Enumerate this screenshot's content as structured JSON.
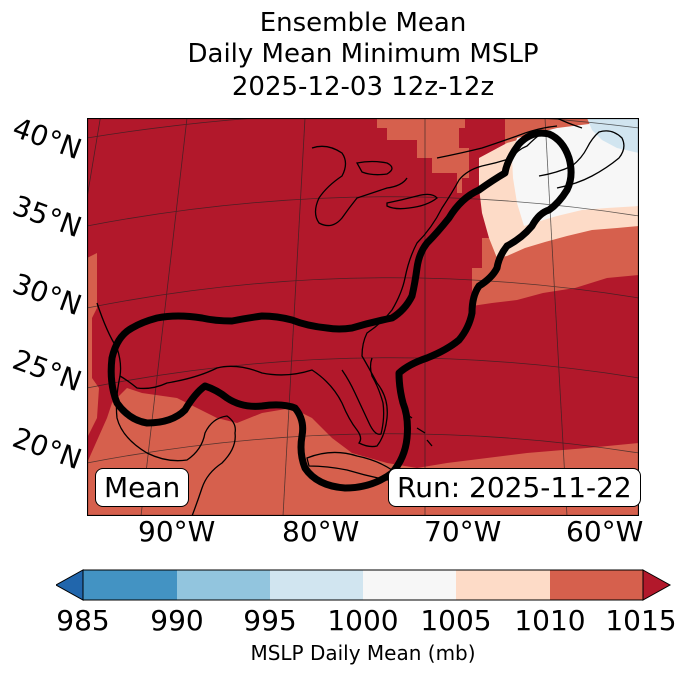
{
  "title": {
    "line1": "Ensemble Mean",
    "line2": "Daily Mean Minimum MSLP",
    "line3": "2025-12-03 12z-12z"
  },
  "map": {
    "lat_labels": [
      "40°N",
      "35°N",
      "30°N",
      "25°N",
      "20°N"
    ],
    "lon_labels": [
      "90°W",
      "80°W",
      "70°W",
      "60°W"
    ],
    "mean_label": "Mean",
    "run_label": "Run: 2025-11-22",
    "colors": {
      "c1015": "#b2182b",
      "c1010": "#d6604d",
      "c1005": "#fddbc7",
      "c1000": "#f7f7f7",
      "c995": "#d1e5f0",
      "c990": "#92c5de",
      "c985": "#4393c3",
      "below": "#2166ac"
    }
  },
  "colorbar": {
    "ticks": [
      "985",
      "990",
      "995",
      "1000",
      "1005",
      "1010",
      "1015"
    ],
    "label": "MSLP Daily Mean (mb)"
  }
}
